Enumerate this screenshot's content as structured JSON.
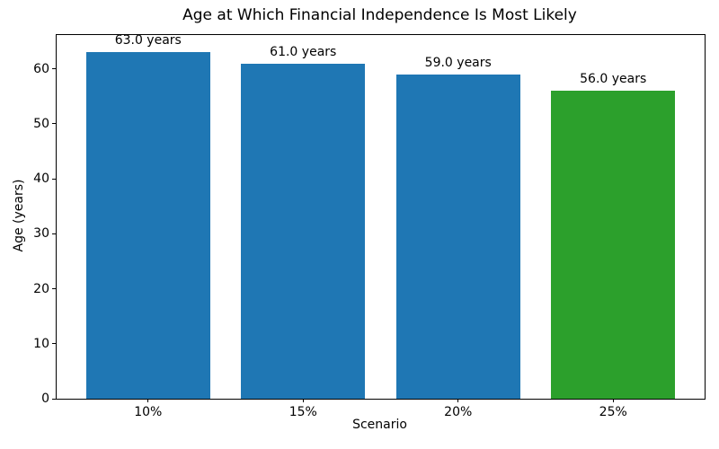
{
  "chart_data": {
    "type": "bar",
    "title": "Age at Which Financial Independence Is Most Likely",
    "xlabel": "Scenario",
    "ylabel": "Age (years)",
    "categories": [
      "10%",
      "15%",
      "20%",
      "25%"
    ],
    "values": [
      63.0,
      61.0,
      59.0,
      56.0
    ],
    "bar_labels": [
      "63.0 years",
      "61.0 years",
      "59.0 years",
      "56.0 years"
    ],
    "bar_colors": [
      "#1f77b4",
      "#1f77b4",
      "#1f77b4",
      "#2ca02c"
    ],
    "yticks": [
      0,
      10,
      20,
      30,
      40,
      50,
      60
    ],
    "ylim": [
      0,
      66.15
    ],
    "bar_width_fraction": 0.8,
    "grid": false,
    "legend": null,
    "frame_color": "#000000",
    "background_color": "#ffffff"
  }
}
